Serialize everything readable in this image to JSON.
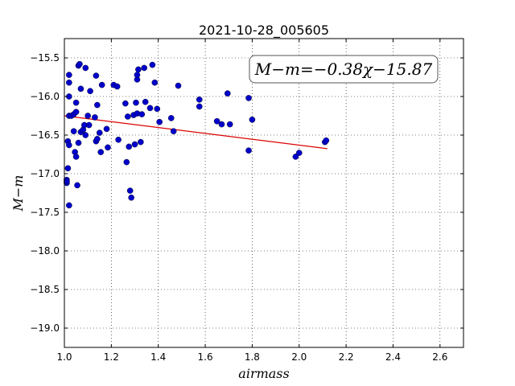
{
  "chart_data": {
    "type": "scatter",
    "title": "2021-10-28_005605",
    "xlabel": "airmass",
    "ylabel": "M−m",
    "annotation": "M−m=−0.38χ−15.87",
    "xlim": [
      1.0,
      2.7
    ],
    "ylim": [
      -19.25,
      -15.25
    ],
    "y_inverted": true,
    "grid": true,
    "x_ticks": [
      1.0,
      1.2,
      1.4,
      1.6,
      1.8,
      2.0,
      2.2,
      2.4,
      2.6
    ],
    "x_tick_labels": [
      "1.0",
      "1.2",
      "1.4",
      "1.6",
      "1.8",
      "2.0",
      "2.2",
      "2.4",
      "2.6"
    ],
    "y_ticks": [
      -15.5,
      -16.0,
      -16.5,
      -17.0,
      -17.5,
      -18.0,
      -18.5,
      -19.0
    ],
    "y_tick_labels": [
      "−15.5",
      "−16.0",
      "−16.5",
      "−17.0",
      "−17.5",
      "−18.0",
      "−18.5",
      "−19.0"
    ],
    "point_color": "#0000cc",
    "line_color": "#dd0000",
    "fit_line": {
      "slope": -0.38,
      "intercept": -15.87,
      "x": [
        1.0,
        2.12
      ]
    },
    "points": [
      [
        1.01,
        -17.08
      ],
      [
        1.01,
        -17.12
      ],
      [
        1.01,
        -17.1
      ],
      [
        1.015,
        -16.93
      ],
      [
        1.015,
        -16.58
      ],
      [
        1.02,
        -16.63
      ],
      [
        1.02,
        -17.41
      ],
      [
        1.02,
        -15.82
      ],
      [
        1.02,
        -15.72
      ],
      [
        1.02,
        -16.0
      ],
      [
        1.02,
        -16.25
      ],
      [
        1.03,
        -16.25
      ],
      [
        1.04,
        -16.23
      ],
      [
        1.04,
        -16.45
      ],
      [
        1.045,
        -16.72
      ],
      [
        1.05,
        -16.2
      ],
      [
        1.05,
        -16.78
      ],
      [
        1.05,
        -16.08
      ],
      [
        1.055,
        -17.15
      ],
      [
        1.06,
        -16.6
      ],
      [
        1.06,
        -15.6
      ],
      [
        1.065,
        -15.58
      ],
      [
        1.07,
        -16.46
      ],
      [
        1.07,
        -15.9
      ],
      [
        1.08,
        -16.43
      ],
      [
        1.085,
        -16.37
      ],
      [
        1.09,
        -16.5
      ],
      [
        1.09,
        -15.63
      ],
      [
        1.1,
        -16.25
      ],
      [
        1.105,
        -16.37
      ],
      [
        1.11,
        -15.93
      ],
      [
        1.13,
        -16.27
      ],
      [
        1.135,
        -15.73
      ],
      [
        1.135,
        -16.58
      ],
      [
        1.14,
        -16.11
      ],
      [
        1.14,
        -16.55
      ],
      [
        1.15,
        -16.47
      ],
      [
        1.155,
        -16.72
      ],
      [
        1.16,
        -15.85
      ],
      [
        1.18,
        -16.42
      ],
      [
        1.185,
        -16.66
      ],
      [
        1.21,
        -15.85
      ],
      [
        1.225,
        -15.87
      ],
      [
        1.23,
        -16.56
      ],
      [
        1.26,
        -16.09
      ],
      [
        1.265,
        -16.85
      ],
      [
        1.27,
        -16.26
      ],
      [
        1.275,
        -16.65
      ],
      [
        1.28,
        -17.22
      ],
      [
        1.285,
        -17.31
      ],
      [
        1.295,
        -16.24
      ],
      [
        1.3,
        -16.62
      ],
      [
        1.305,
        -16.08
      ],
      [
        1.31,
        -16.22
      ],
      [
        1.31,
        -15.78
      ],
      [
        1.31,
        -15.72
      ],
      [
        1.315,
        -15.65
      ],
      [
        1.325,
        -16.59
      ],
      [
        1.33,
        -16.23
      ],
      [
        1.34,
        -15.63
      ],
      [
        1.345,
        -16.07
      ],
      [
        1.365,
        -16.15
      ],
      [
        1.375,
        -15.59
      ],
      [
        1.385,
        -15.82
      ],
      [
        1.395,
        -16.16
      ],
      [
        1.405,
        -16.33
      ],
      [
        1.455,
        -16.28
      ],
      [
        1.465,
        -16.45
      ],
      [
        1.485,
        -15.86
      ],
      [
        1.575,
        -16.04
      ],
      [
        1.575,
        -16.13
      ],
      [
        1.65,
        -16.32
      ],
      [
        1.67,
        -16.36
      ],
      [
        1.695,
        -15.96
      ],
      [
        1.705,
        -16.36
      ],
      [
        1.785,
        -16.02
      ],
      [
        1.785,
        -16.7
      ],
      [
        1.8,
        -16.3
      ],
      [
        1.985,
        -16.78
      ],
      [
        2.0,
        -16.73
      ],
      [
        2.11,
        -16.59
      ],
      [
        2.115,
        -16.57
      ]
    ]
  }
}
